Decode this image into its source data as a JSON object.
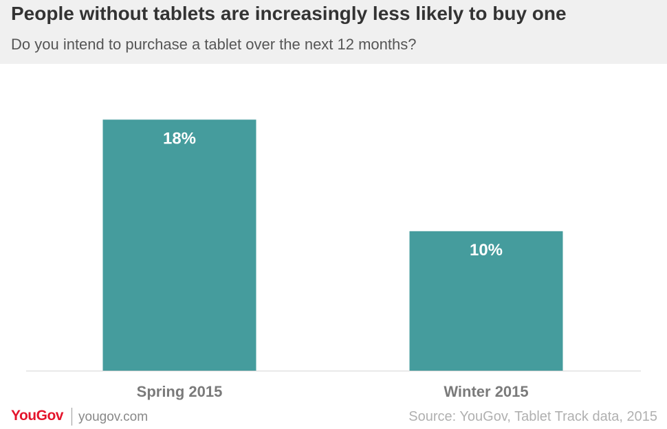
{
  "title": "People without tablets are increasingly less likely to buy one",
  "subtitle": "Do you intend to purchase a tablet over the next 12 months?",
  "chart_data": {
    "type": "bar",
    "categories": [
      "Spring 2015",
      "Winter 2015"
    ],
    "values": [
      18,
      10
    ],
    "value_labels": [
      "18%",
      "10%"
    ],
    "unit": "%",
    "ylim": [
      0,
      22
    ],
    "grid": false,
    "bar_color": "#459c9d"
  },
  "footer": {
    "logo": "YouGov",
    "website": "yougov.com",
    "source": "Source: YouGov, Tablet Track data, 2015"
  },
  "colors": {
    "bar": "#459c9d",
    "logo": "#e4152c",
    "header_bg": "#f0f0f0"
  }
}
